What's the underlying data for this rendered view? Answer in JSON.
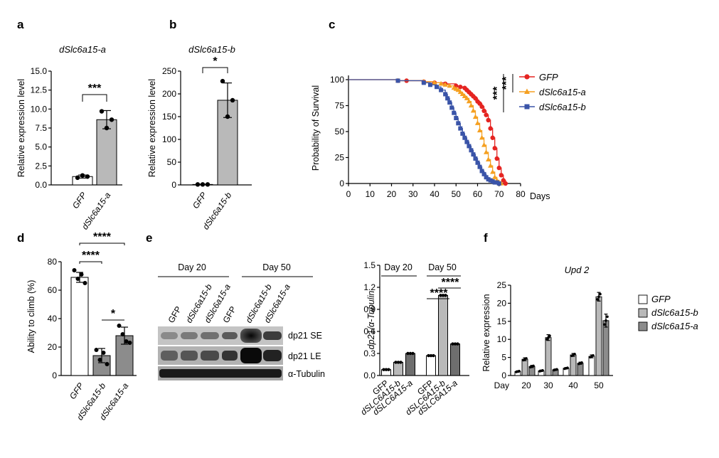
{
  "panel_labels": [
    "a",
    "b",
    "c",
    "d",
    "e",
    "f"
  ],
  "colors": {
    "bar_white": "#ffffff",
    "bar_light_gray": "#b9b9b9",
    "bar_gray": "#8c8c8c",
    "bar_dark_gray": "#6e6e6e",
    "gfp_line": "#e52421",
    "a_line": "#f5a021",
    "b_line": "#3a54a8"
  },
  "chart_data": [
    {
      "panel": "a",
      "type": "bar",
      "title": "dSlc6a15-a",
      "categories": [
        "GFP",
        "dSlc6a15-a"
      ],
      "values": [
        1.1,
        8.6
      ],
      "errors": [
        0.2,
        1.2
      ],
      "points": [
        [
          0.95,
          1.25,
          1.1
        ],
        [
          9.7,
          7.5,
          8.6
        ]
      ],
      "ylabel": "Relative expression level",
      "ylim": [
        0,
        15
      ],
      "yticks": [
        "0.0",
        "2.5",
        "5.0",
        "7.5",
        "10.0",
        "12.5",
        "15.0"
      ],
      "significance": "***"
    },
    {
      "panel": "b",
      "type": "bar",
      "title": "dSlc6a15-b",
      "categories": [
        "GFP",
        "dSlc6a15-b"
      ],
      "values": [
        1,
        186
      ],
      "errors": [
        0.5,
        38
      ],
      "points": [
        [
          1,
          1,
          1
        ],
        [
          228,
          150,
          186
        ]
      ],
      "ylabel": "Relative expression level",
      "ylim": [
        0,
        250
      ],
      "yticks": [
        "0",
        "50",
        "100",
        "150",
        "200",
        "250"
      ],
      "significance": "*"
    },
    {
      "panel": "c",
      "type": "line",
      "ylabel": "Probability of Survival",
      "xlabel": "Days",
      "xlim": [
        0,
        80
      ],
      "ylim": [
        0,
        100
      ],
      "xticks": [
        "0",
        "10",
        "20",
        "30",
        "40",
        "50",
        "60",
        "70",
        "80"
      ],
      "yticks": [
        "0",
        "25",
        "50",
        "75",
        "100"
      ],
      "significance": [
        "***",
        "***"
      ],
      "series": [
        {
          "name": "GFP",
          "x": [
            0,
            23,
            27,
            35,
            40,
            45,
            50,
            52,
            54,
            55,
            56,
            57,
            58,
            59,
            60,
            61,
            62,
            63,
            64,
            65,
            66,
            67,
            68,
            69,
            70,
            71,
            72,
            73
          ],
          "y": [
            100,
            99,
            99,
            98,
            97,
            96,
            94,
            93,
            92,
            90,
            88,
            86,
            84,
            82,
            79,
            77,
            74,
            70,
            66,
            61,
            53,
            44,
            34,
            24,
            15,
            8,
            3,
            0
          ]
        },
        {
          "name": "dSlc6a15-a",
          "x": [
            0,
            23,
            35,
            40,
            43,
            45,
            47,
            49,
            50,
            51,
            52,
            53,
            54,
            55,
            56,
            57,
            58,
            59,
            60,
            61,
            62,
            63,
            64,
            65,
            66,
            67,
            68,
            69,
            70,
            71
          ],
          "y": [
            100,
            99,
            98,
            97,
            96,
            95,
            94,
            92,
            91,
            90,
            88,
            86,
            84,
            82,
            79,
            75,
            70,
            64,
            58,
            51,
            44,
            37,
            30,
            23,
            17,
            11,
            6,
            3,
            1,
            0
          ]
        },
        {
          "name": "dSlc6a15-b",
          "x": [
            0,
            23,
            35,
            38,
            41,
            43,
            45,
            46,
            47,
            48,
            49,
            50,
            51,
            52,
            53,
            54,
            55,
            56,
            57,
            58,
            59,
            60,
            61,
            62,
            63,
            64,
            65,
            66,
            67,
            68,
            69,
            70
          ],
          "y": [
            100,
            99,
            97,
            95,
            93,
            90,
            86,
            82,
            78,
            73,
            68,
            63,
            58,
            53,
            48,
            44,
            40,
            36,
            32,
            28,
            24,
            20,
            16,
            12,
            9,
            6,
            4,
            3,
            2,
            1,
            1,
            0
          ]
        }
      ]
    },
    {
      "panel": "d",
      "type": "bar",
      "categories": [
        "GFP",
        "dSlc6a15-b",
        "dSlc6a15-a"
      ],
      "values": [
        69,
        14,
        28
      ],
      "errors": [
        3.5,
        5,
        6
      ],
      "points": [
        [
          74,
          68,
          71,
          65
        ],
        [
          18,
          11,
          16,
          8
        ],
        [
          35,
          29,
          24,
          23
        ]
      ],
      "ylabel": "Ability to climb (%)",
      "ylim": [
        0,
        80
      ],
      "yticks": [
        "0",
        "20",
        "40",
        "60",
        "80"
      ],
      "significance": [
        "****",
        "****",
        "*"
      ]
    },
    {
      "panel": "e",
      "type": "bar",
      "day_labels": [
        "Day 20",
        "Day 50"
      ],
      "categories": [
        "GFP",
        "dSLC6A15-b",
        "dSLC6A15-a",
        "GFP",
        "dSLC6A15-b",
        "dSLC6A15-a"
      ],
      "values": [
        0.08,
        0.18,
        0.3,
        0.27,
        1.09,
        0.43
      ],
      "errors": [
        0.01,
        0.01,
        0.01,
        0.01,
        0.02,
        0.01
      ],
      "ylabel": "dp21/α-Tubulin",
      "ylim": [
        0,
        1.5
      ],
      "yticks": [
        "0.0",
        "0.3",
        "0.6",
        "0.9",
        "1.2",
        "1.5"
      ],
      "significance": [
        "****",
        "****"
      ],
      "blot": {
        "day_labels": [
          "Day 20",
          "Day 50"
        ],
        "lanes": [
          "GFP",
          "dSlc6a15-b",
          "dSlc6a15-a",
          "GFP",
          "dSlc6a15-b",
          "dSlc6a15-a"
        ],
        "rows": [
          "dp21 SE",
          "dp21 LE",
          "α-Tubulin"
        ]
      }
    },
    {
      "panel": "f",
      "type": "bar",
      "title": "Upd 2",
      "ylabel": "Relative expression",
      "categories": [
        "20",
        "30",
        "40",
        "50"
      ],
      "category_prefix": "Day",
      "ylim": [
        0,
        25
      ],
      "yticks": [
        "0",
        "5",
        "10",
        "15",
        "20",
        "25"
      ],
      "series": [
        {
          "name": "GFP",
          "values": [
            1.1,
            1.3,
            2.0,
            5.3
          ],
          "errors": [
            0.2,
            0.2,
            0.2,
            0.4
          ]
        },
        {
          "name": "dSlc6a15-b",
          "values": [
            4.5,
            10.5,
            5.7,
            21.8
          ],
          "errors": [
            0.4,
            0.8,
            0.4,
            1.2
          ]
        },
        {
          "name": "dSlc6a15-a",
          "values": [
            2.5,
            1.6,
            3.4,
            15.2
          ],
          "errors": [
            0.3,
            0.2,
            0.3,
            1.8
          ]
        }
      ]
    }
  ]
}
